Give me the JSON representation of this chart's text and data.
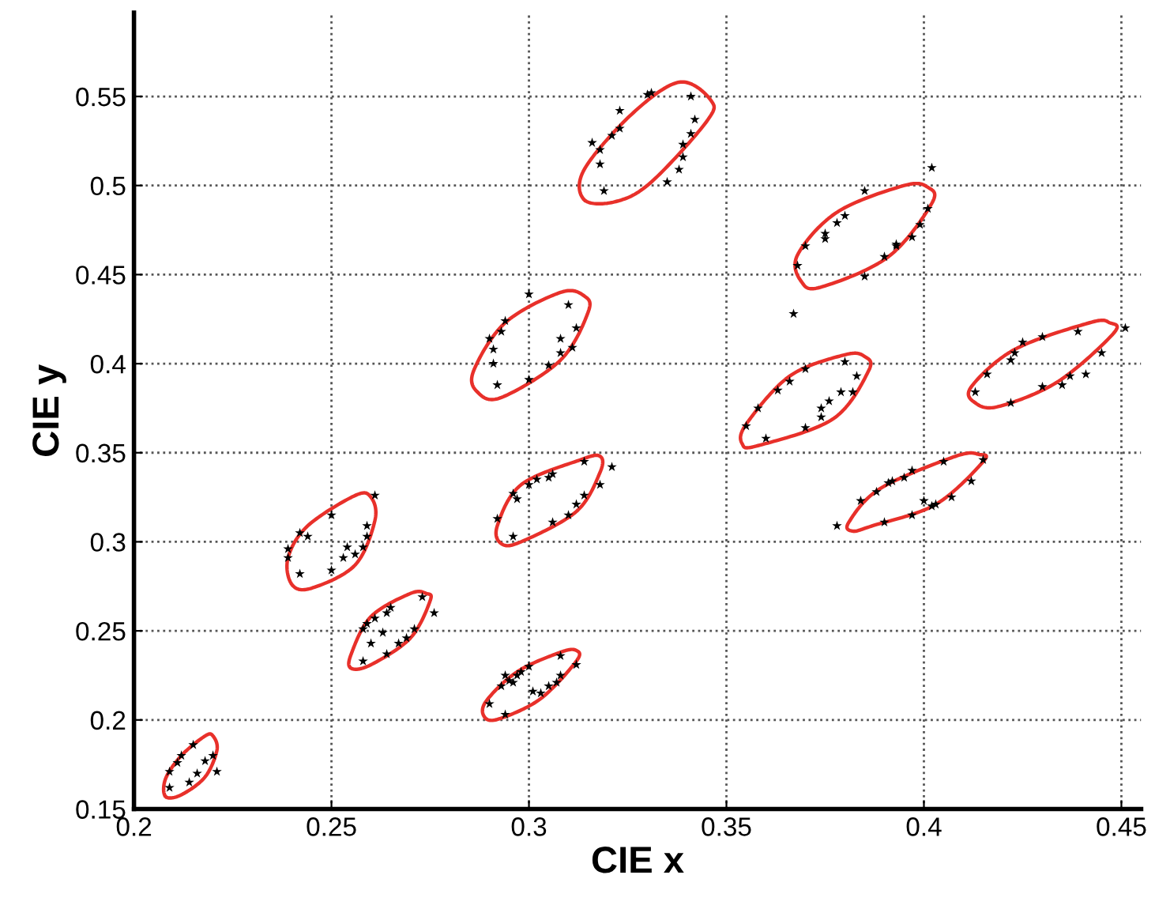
{
  "chart_data": {
    "type": "scatter",
    "xlabel": "CIE x",
    "ylabel": "CIE y",
    "xlim": [
      0.2,
      0.455
    ],
    "ylim": [
      0.15,
      0.597
    ],
    "xticks": [
      0.2,
      0.25,
      0.3,
      0.35,
      0.4,
      0.45
    ],
    "yticks": [
      0.15,
      0.2,
      0.25,
      0.3,
      0.35,
      0.4,
      0.45,
      0.5,
      0.55
    ],
    "grid": true,
    "series": [
      {
        "marker": "star",
        "color": "#000000",
        "x": [
          0.209,
          0.209,
          0.211,
          0.212,
          0.215,
          0.214,
          0.216,
          0.218,
          0.22,
          0.221,
          0.239,
          0.239,
          0.242,
          0.244,
          0.25,
          0.242,
          0.25,
          0.253,
          0.256,
          0.258,
          0.259,
          0.259,
          0.261,
          0.254,
          0.258,
          0.259,
          0.261,
          0.264,
          0.265,
          0.258,
          0.264,
          0.267,
          0.269,
          0.271,
          0.273,
          0.276,
          0.26,
          0.263,
          0.29,
          0.294,
          0.293,
          0.295,
          0.297,
          0.298,
          0.3,
          0.294,
          0.301,
          0.303,
          0.305,
          0.307,
          0.308,
          0.308,
          0.312,
          0.296,
          0.292,
          0.296,
          0.296,
          0.297,
          0.3,
          0.302,
          0.305,
          0.306,
          0.306,
          0.31,
          0.312,
          0.314,
          0.318,
          0.321,
          0.314,
          0.29,
          0.291,
          0.291,
          0.292,
          0.293,
          0.294,
          0.3,
          0.3,
          0.305,
          0.308,
          0.31,
          0.312,
          0.311,
          0.308,
          0.316,
          0.318,
          0.318,
          0.319,
          0.321,
          0.323,
          0.323,
          0.331,
          0.33,
          0.341,
          0.342,
          0.341,
          0.339,
          0.339,
          0.338,
          0.335,
          0.368,
          0.37,
          0.375,
          0.375,
          0.378,
          0.38,
          0.385,
          0.385,
          0.39,
          0.393,
          0.393,
          0.397,
          0.399,
          0.401,
          0.402,
          0.367,
          0.358,
          0.363,
          0.366,
          0.37,
          0.374,
          0.376,
          0.379,
          0.382,
          0.383,
          0.38,
          0.355,
          0.36,
          0.37,
          0.374,
          0.413,
          0.416,
          0.422,
          0.423,
          0.425,
          0.43,
          0.439,
          0.422,
          0.43,
          0.435,
          0.437,
          0.441,
          0.445,
          0.451,
          0.378,
          0.384,
          0.388,
          0.391,
          0.392,
          0.395,
          0.397,
          0.405,
          0.415,
          0.412,
          0.407,
          0.403,
          0.402,
          0.397,
          0.39,
          0.4
        ],
        "values": [
          0.162,
          0.171,
          0.176,
          0.18,
          0.186,
          0.165,
          0.17,
          0.177,
          0.18,
          0.171,
          0.296,
          0.291,
          0.305,
          0.303,
          0.315,
          0.282,
          0.284,
          0.291,
          0.293,
          0.297,
          0.303,
          0.309,
          0.326,
          0.297,
          0.251,
          0.254,
          0.257,
          0.26,
          0.263,
          0.233,
          0.237,
          0.243,
          0.246,
          0.251,
          0.269,
          0.26,
          0.243,
          0.249,
          0.209,
          0.203,
          0.219,
          0.222,
          0.225,
          0.227,
          0.23,
          0.225,
          0.216,
          0.215,
          0.219,
          0.221,
          0.225,
          0.236,
          0.231,
          0.221,
          0.313,
          0.303,
          0.327,
          0.324,
          0.332,
          0.335,
          0.336,
          0.338,
          0.311,
          0.315,
          0.321,
          0.326,
          0.332,
          0.342,
          0.345,
          0.414,
          0.408,
          0.4,
          0.388,
          0.418,
          0.424,
          0.439,
          0.391,
          0.399,
          0.414,
          0.433,
          0.42,
          0.409,
          0.406,
          0.524,
          0.52,
          0.512,
          0.497,
          0.528,
          0.532,
          0.542,
          0.552,
          0.551,
          0.55,
          0.537,
          0.529,
          0.523,
          0.516,
          0.509,
          0.502,
          0.455,
          0.466,
          0.473,
          0.47,
          0.479,
          0.483,
          0.497,
          0.449,
          0.46,
          0.467,
          0.466,
          0.471,
          0.478,
          0.487,
          0.51,
          0.428,
          0.375,
          0.385,
          0.39,
          0.397,
          0.375,
          0.379,
          0.384,
          0.384,
          0.393,
          0.401,
          0.365,
          0.358,
          0.364,
          0.37,
          0.384,
          0.394,
          0.402,
          0.406,
          0.412,
          0.415,
          0.418,
          0.378,
          0.387,
          0.388,
          0.393,
          0.394,
          0.406,
          0.42,
          0.309,
          0.323,
          0.328,
          0.333,
          0.334,
          0.336,
          0.34,
          0.345,
          0.346,
          0.334,
          0.325,
          0.321,
          0.32,
          0.315,
          0.311,
          0.323
        ]
      }
    ]
  }
}
